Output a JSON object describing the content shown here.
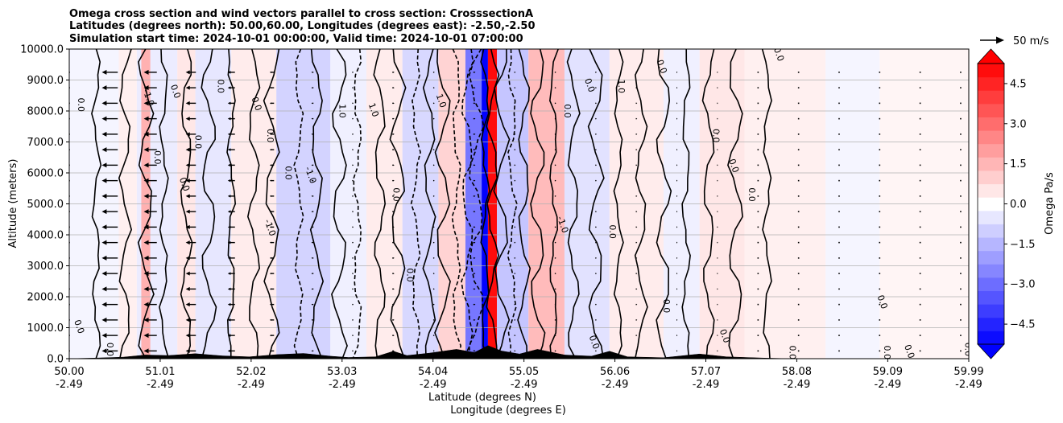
{
  "chart_data": {
    "type": "heatmap",
    "title_lines": [
      "Omega cross section and wind vectors parallel to cross section: CrosssectionA",
      "Latitudes (degrees north): 50.00,60.00, Longitudes (degrees east): -2.50,-2.50",
      "Simulation start time: 2024-10-01 00:00:00, Valid time: 2024-10-01 07:00:00"
    ],
    "xlabel_line1": "Latitude (degrees N)",
    "xlabel_line2": "Longitude (degrees E)",
    "ylabel": "Altitude (meters)",
    "xlim": [
      50.0,
      59.99
    ],
    "ylim": [
      0,
      10000
    ],
    "x_ticks": [
      {
        "lat": 50.0,
        "label_lat": "50.00",
        "label_lon": "-2.49"
      },
      {
        "lat": 51.01,
        "label_lat": "51.01",
        "label_lon": "-2.49"
      },
      {
        "lat": 52.02,
        "label_lat": "52.02",
        "label_lon": "-2.49"
      },
      {
        "lat": 53.03,
        "label_lat": "53.03",
        "label_lon": "-2.49"
      },
      {
        "lat": 54.04,
        "label_lat": "54.04",
        "label_lon": "-2.49"
      },
      {
        "lat": 55.05,
        "label_lat": "55.05",
        "label_lon": "-2.49"
      },
      {
        "lat": 56.06,
        "label_lat": "56.06",
        "label_lon": "-2.49"
      },
      {
        "lat": 57.07,
        "label_lat": "57.07",
        "label_lon": "-2.49"
      },
      {
        "lat": 58.08,
        "label_lat": "58.08",
        "label_lon": "-2.49"
      },
      {
        "lat": 59.09,
        "label_lat": "59.09",
        "label_lon": "-2.49"
      },
      {
        "lat": 59.99,
        "label_lat": "59.99",
        "label_lon": "-2.49"
      }
    ],
    "y_ticks": [
      {
        "value": 0,
        "label": "0.0"
      },
      {
        "value": 1000,
        "label": "1000.0"
      },
      {
        "value": 2000,
        "label": "2000.0"
      },
      {
        "value": 3000,
        "label": "3000.0"
      },
      {
        "value": 4000,
        "label": "4000.0"
      },
      {
        "value": 5000,
        "label": "5000.0"
      },
      {
        "value": 6000,
        "label": "6000.0"
      },
      {
        "value": 7000,
        "label": "7000.0"
      },
      {
        "value": 8000,
        "label": "8000.0"
      },
      {
        "value": 9000,
        "label": "9000.0"
      },
      {
        "value": 10000,
        "label": "10000.0"
      }
    ],
    "grid": "horizontal",
    "colorbar": {
      "label": "Omega Pa/s",
      "vmin": -5.25,
      "vmax": 5.25,
      "n_levels": 21,
      "extend": "both",
      "ticks": [
        {
          "value": 4.5,
          "label": "4.5"
        },
        {
          "value": 3.0,
          "label": "3.0"
        },
        {
          "value": 1.5,
          "label": "1.5"
        },
        {
          "value": 0.0,
          "label": "0.0"
        },
        {
          "value": -1.5,
          "label": "−1.5"
        },
        {
          "value": -3.0,
          "label": "−3.0"
        },
        {
          "value": -4.5,
          "label": "−4.5"
        }
      ]
    },
    "quiver_key": {
      "label": "50 m/s",
      "speed": 50
    },
    "contour_levels": [
      -1.0,
      0.0,
      1.0
    ],
    "shading_regions": [
      {
        "lat0": 50.0,
        "lat1": 50.55,
        "omega": -0.2
      },
      {
        "lat0": 50.55,
        "lat1": 50.75,
        "omega": 0.3
      },
      {
        "lat0": 50.75,
        "lat1": 51.2,
        "omega": -0.4
      },
      {
        "lat0": 50.8,
        "lat1": 50.9,
        "omega": 1.6
      },
      {
        "lat0": 51.2,
        "lat1": 51.4,
        "omega": 0.5
      },
      {
        "lat0": 51.4,
        "lat1": 51.8,
        "omega": -0.5
      },
      {
        "lat0": 51.8,
        "lat1": 52.3,
        "omega": 0.4
      },
      {
        "lat0": 52.3,
        "lat1": 52.9,
        "omega": -0.9
      },
      {
        "lat0": 52.9,
        "lat1": 53.3,
        "omega": -0.3
      },
      {
        "lat0": 53.3,
        "lat1": 53.7,
        "omega": 0.4
      },
      {
        "lat0": 53.7,
        "lat1": 54.1,
        "omega": -0.8
      },
      {
        "lat0": 54.1,
        "lat1": 54.4,
        "omega": 0.9
      },
      {
        "lat0": 54.4,
        "lat1": 54.58,
        "omega": -2.8
      },
      {
        "lat0": 54.58,
        "lat1": 54.65,
        "omega": -5.2
      },
      {
        "lat0": 54.65,
        "lat1": 54.75,
        "omega": 5.0
      },
      {
        "lat0": 54.75,
        "lat1": 55.1,
        "omega": -1.2
      },
      {
        "lat0": 55.1,
        "lat1": 55.5,
        "omega": 1.4
      },
      {
        "lat0": 55.5,
        "lat1": 56.0,
        "omega": -0.6
      },
      {
        "lat0": 56.0,
        "lat1": 56.6,
        "omega": 0.4
      },
      {
        "lat0": 56.6,
        "lat1": 57.0,
        "omega": -0.3
      },
      {
        "lat0": 57.0,
        "lat1": 57.5,
        "omega": 0.5
      },
      {
        "lat0": 57.5,
        "lat1": 58.4,
        "omega": 0.3
      },
      {
        "lat0": 58.4,
        "lat1": 59.0,
        "omega": -0.2
      },
      {
        "lat0": 59.0,
        "lat1": 59.99,
        "omega": 0.2
      }
    ],
    "contour_lines": [
      {
        "lat": 50.3,
        "dashed": false
      },
      {
        "lat": 50.62,
        "dashed": false
      },
      {
        "lat": 50.85,
        "dashed": false
      },
      {
        "lat": 51.05,
        "dashed": false
      },
      {
        "lat": 51.3,
        "dashed": false
      },
      {
        "lat": 51.55,
        "dashed": false
      },
      {
        "lat": 51.8,
        "dashed": false
      },
      {
        "lat": 52.05,
        "dashed": false
      },
      {
        "lat": 52.25,
        "dashed": false
      },
      {
        "lat": 52.55,
        "dashed": true
      },
      {
        "lat": 52.75,
        "dashed": false
      },
      {
        "lat": 53.0,
        "dashed": false
      },
      {
        "lat": 53.2,
        "dashed": true
      },
      {
        "lat": 53.45,
        "dashed": false
      },
      {
        "lat": 53.65,
        "dashed": false
      },
      {
        "lat": 53.85,
        "dashed": true
      },
      {
        "lat": 54.0,
        "dashed": false
      },
      {
        "lat": 54.15,
        "dashed": false
      },
      {
        "lat": 54.3,
        "dashed": true
      },
      {
        "lat": 54.42,
        "dashed": true
      },
      {
        "lat": 54.52,
        "dashed": true
      },
      {
        "lat": 54.62,
        "dashed": false
      },
      {
        "lat": 54.7,
        "dashed": false
      },
      {
        "lat": 54.8,
        "dashed": false
      },
      {
        "lat": 54.92,
        "dashed": true
      },
      {
        "lat": 55.05,
        "dashed": false
      },
      {
        "lat": 55.2,
        "dashed": false
      },
      {
        "lat": 55.38,
        "dashed": false
      },
      {
        "lat": 55.6,
        "dashed": false
      },
      {
        "lat": 55.85,
        "dashed": false
      },
      {
        "lat": 56.1,
        "dashed": false
      },
      {
        "lat": 56.35,
        "dashed": false
      },
      {
        "lat": 56.6,
        "dashed": false
      },
      {
        "lat": 56.85,
        "dashed": false
      },
      {
        "lat": 57.1,
        "dashed": false
      },
      {
        "lat": 57.4,
        "dashed": false
      },
      {
        "lat": 57.75,
        "dashed": false
      }
    ],
    "contour_labels": [
      {
        "lat": 50.1,
        "alt": 8200,
        "text": "0.0"
      },
      {
        "lat": 50.08,
        "alt": 1000,
        "text": "0.0"
      },
      {
        "lat": 50.42,
        "alt": 300,
        "text": "0.0"
      },
      {
        "lat": 50.85,
        "alt": 8400,
        "text": "-1.0"
      },
      {
        "lat": 50.95,
        "alt": 6500,
        "text": "0.0"
      },
      {
        "lat": 51.15,
        "alt": 8600,
        "text": "0.0"
      },
      {
        "lat": 51.4,
        "alt": 7000,
        "text": "0.0"
      },
      {
        "lat": 51.25,
        "alt": 5600,
        "text": "0.0"
      },
      {
        "lat": 51.65,
        "alt": 8800,
        "text": "0.0"
      },
      {
        "lat": 52.05,
        "alt": 8200,
        "text": "0.0"
      },
      {
        "lat": 52.2,
        "alt": 7200,
        "text": "0.0"
      },
      {
        "lat": 52.2,
        "alt": 4200,
        "text": "-1.0"
      },
      {
        "lat": 52.4,
        "alt": 6000,
        "text": "0.0"
      },
      {
        "lat": 52.65,
        "alt": 5900,
        "text": "-1.0"
      },
      {
        "lat": 53.0,
        "alt": 8000,
        "text": "1.0"
      },
      {
        "lat": 53.35,
        "alt": 8000,
        "text": "1.0"
      },
      {
        "lat": 53.6,
        "alt": 5300,
        "text": "0.0"
      },
      {
        "lat": 54.1,
        "alt": 8300,
        "text": "1.0"
      },
      {
        "lat": 55.5,
        "alt": 8000,
        "text": "0.0"
      },
      {
        "lat": 55.75,
        "alt": 8800,
        "text": "0.0"
      },
      {
        "lat": 56.1,
        "alt": 8800,
        "text": "1.0"
      },
      {
        "lat": 56.55,
        "alt": 9400,
        "text": "0.0"
      },
      {
        "lat": 57.15,
        "alt": 7200,
        "text": "0.0"
      },
      {
        "lat": 57.35,
        "alt": 6200,
        "text": "0.0"
      },
      {
        "lat": 57.55,
        "alt": 5300,
        "text": "0.0"
      },
      {
        "lat": 57.85,
        "alt": 9800,
        "text": "0.0"
      },
      {
        "lat": 56.6,
        "alt": 1700,
        "text": "0.0"
      },
      {
        "lat": 57.25,
        "alt": 700,
        "text": "0.0"
      },
      {
        "lat": 58.0,
        "alt": 200,
        "text": "0.0"
      },
      {
        "lat": 59.0,
        "alt": 1800,
        "text": "0.0"
      },
      {
        "lat": 59.05,
        "alt": 200,
        "text": "0.0"
      },
      {
        "lat": 59.3,
        "alt": 200,
        "text": "0.0"
      },
      {
        "lat": 59.95,
        "alt": 300,
        "text": "0.0"
      },
      {
        "lat": 55.8,
        "alt": 500,
        "text": "0.0"
      },
      {
        "lat": 53.75,
        "alt": 2700,
        "text": "0.0"
      },
      {
        "lat": 55.45,
        "alt": 4300,
        "text": "-1.0"
      },
      {
        "lat": 56.0,
        "alt": 4100,
        "text": "0.0"
      }
    ],
    "wind_vectors": [
      {
        "lat": 50.0,
        "u": 0.0
      },
      {
        "lat": 50.45,
        "u": -22
      },
      {
        "lat": 50.9,
        "u": -18
      },
      {
        "lat": 51.35,
        "u": -14
      },
      {
        "lat": 51.8,
        "u": -10
      },
      {
        "lat": 52.25,
        "u": -6
      },
      {
        "lat": 52.7,
        "u": -3
      },
      {
        "lat": 53.15,
        "u": 2
      },
      {
        "lat": 53.6,
        "u": 3
      },
      {
        "lat": 54.05,
        "u": 2
      },
      {
        "lat": 54.5,
        "u": 3
      },
      {
        "lat": 54.95,
        "u": 2
      },
      {
        "lat": 55.4,
        "u": 2
      },
      {
        "lat": 55.85,
        "u": 2
      },
      {
        "lat": 56.3,
        "u": 2
      },
      {
        "lat": 56.75,
        "u": 1.5
      },
      {
        "lat": 57.2,
        "u": 1.5
      },
      {
        "lat": 57.65,
        "u": 0.5
      },
      {
        "lat": 58.1,
        "u": 0.5
      },
      {
        "lat": 58.55,
        "u": 0.5
      },
      {
        "lat": 59.0,
        "u": 0.5
      },
      {
        "lat": 59.45,
        "u": 0.5
      },
      {
        "lat": 59.9,
        "u": 0.5
      }
    ],
    "terrain": [
      {
        "lat": 50.0,
        "alt": 0
      },
      {
        "lat": 50.3,
        "alt": 20
      },
      {
        "lat": 50.6,
        "alt": 50
      },
      {
        "lat": 50.85,
        "alt": 120
      },
      {
        "lat": 51.1,
        "alt": 100
      },
      {
        "lat": 51.4,
        "alt": 160
      },
      {
        "lat": 51.7,
        "alt": 90
      },
      {
        "lat": 52.0,
        "alt": 60
      },
      {
        "lat": 52.3,
        "alt": 130
      },
      {
        "lat": 52.6,
        "alt": 170
      },
      {
        "lat": 52.9,
        "alt": 80
      },
      {
        "lat": 53.1,
        "alt": 40
      },
      {
        "lat": 53.4,
        "alt": 60
      },
      {
        "lat": 53.6,
        "alt": 240
      },
      {
        "lat": 53.75,
        "alt": 100
      },
      {
        "lat": 54.0,
        "alt": 180
      },
      {
        "lat": 54.3,
        "alt": 300
      },
      {
        "lat": 54.5,
        "alt": 200
      },
      {
        "lat": 54.65,
        "alt": 420
      },
      {
        "lat": 54.8,
        "alt": 250
      },
      {
        "lat": 55.0,
        "alt": 150
      },
      {
        "lat": 55.2,
        "alt": 300
      },
      {
        "lat": 55.5,
        "alt": 120
      },
      {
        "lat": 55.8,
        "alt": 80
      },
      {
        "lat": 56.0,
        "alt": 240
      },
      {
        "lat": 56.2,
        "alt": 60
      },
      {
        "lat": 56.6,
        "alt": 30
      },
      {
        "lat": 57.0,
        "alt": 150
      },
      {
        "lat": 57.3,
        "alt": 60
      },
      {
        "lat": 57.7,
        "alt": 20
      },
      {
        "lat": 58.0,
        "alt": 0
      },
      {
        "lat": 59.99,
        "alt": 0
      }
    ]
  }
}
